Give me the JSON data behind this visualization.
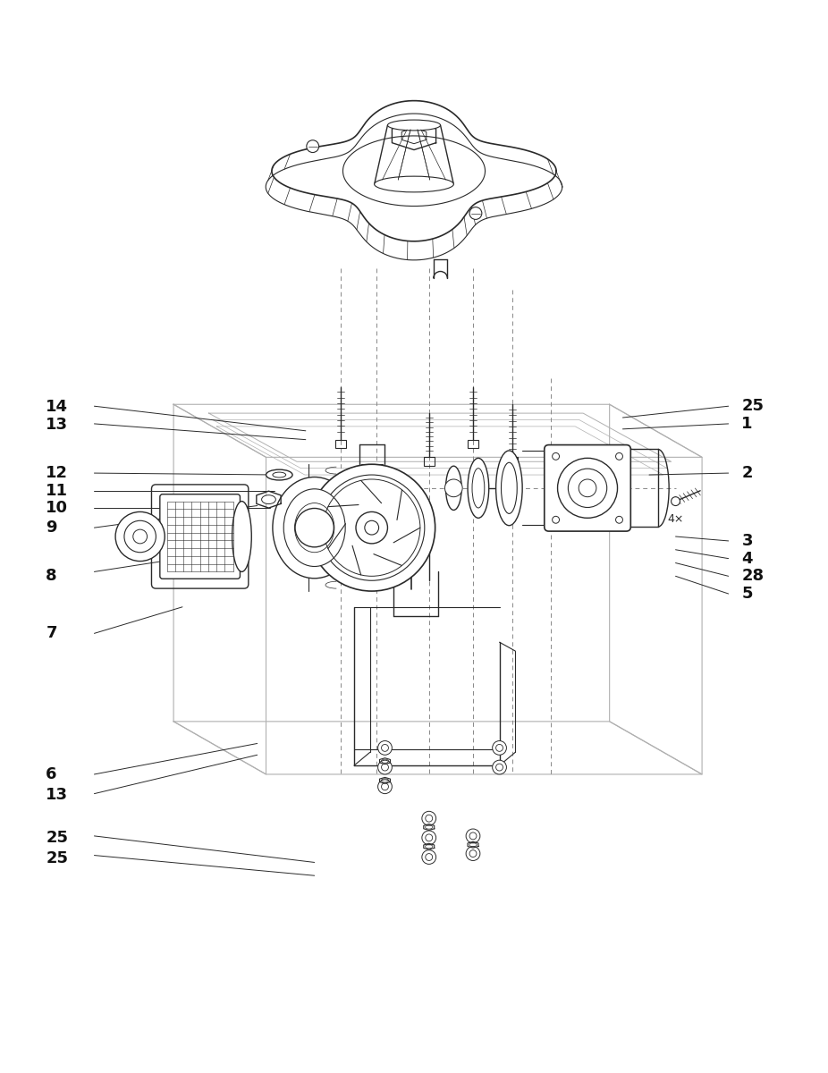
{
  "bg_color": "#ffffff",
  "line_color": "#2a2a2a",
  "light_line_color": "#b0b0b0",
  "label_color": "#111111",
  "figure_width": 9.26,
  "figure_height": 12.0
}
